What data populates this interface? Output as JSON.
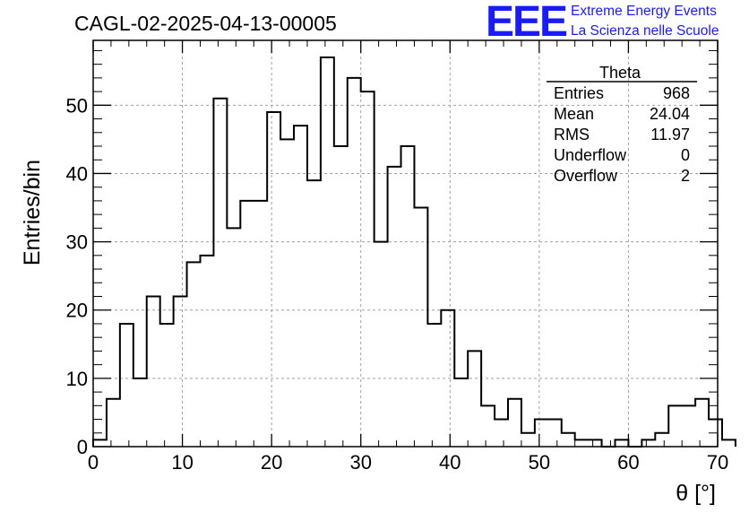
{
  "chart_data": {
    "type": "bar",
    "title": "CAGL-02-2025-04-13-00005",
    "xlabel": "θ [°]",
    "ylabel": "Entries/bin",
    "xlim": [
      0,
      70
    ],
    "ylim": [
      0,
      59.5
    ],
    "x_ticks": [
      0,
      10,
      20,
      30,
      40,
      50,
      60,
      70
    ],
    "y_ticks": [
      0,
      10,
      20,
      30,
      40,
      50
    ],
    "grid": true,
    "bin_width": 1.5,
    "values": [
      1,
      7,
      18,
      10,
      22,
      18,
      22,
      27,
      28,
      51,
      32,
      36,
      36,
      49,
      45,
      47,
      39,
      57,
      44,
      54,
      52,
      30,
      41,
      44,
      35,
      18,
      20,
      10,
      14,
      6,
      4,
      7,
      2,
      4,
      4,
      2,
      1,
      1,
      0,
      1,
      0,
      1,
      2,
      6,
      6,
      7,
      4,
      1
    ],
    "stats_box": {
      "title": "Theta",
      "rows": [
        {
          "label": "Entries",
          "value": "968"
        },
        {
          "label": "Mean",
          "value": "24.04"
        },
        {
          "label": "RMS",
          "value": "11.97"
        },
        {
          "label": "Underflow",
          "value": "0"
        },
        {
          "label": "Overflow",
          "value": "2"
        }
      ]
    }
  },
  "brand": {
    "logo": "EEE",
    "line1": "Extreme Energy Events",
    "line2": "La Scienza nelle Scuole"
  }
}
